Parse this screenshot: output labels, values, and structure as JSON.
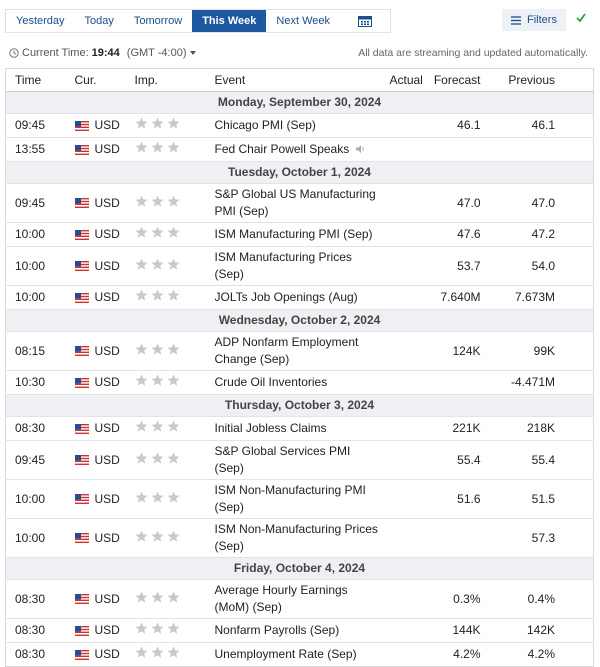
{
  "tabs": [
    "Yesterday",
    "Today",
    "Tomorrow",
    "This Week",
    "Next Week"
  ],
  "active_tab_index": 3,
  "filters": "Filters",
  "current_time_label": "Current Time:",
  "current_time": "19:44",
  "timezone": "(GMT -4:00)",
  "notice": "All data are streaming and updated automatically.",
  "table": {
    "columns": [
      "Time",
      "Cur.",
      "Imp.",
      "Event",
      "Actual",
      "Forecast",
      "Previous"
    ],
    "groups": [
      {
        "date": "Monday, September 30, 2024",
        "rows": [
          {
            "time": "09:45",
            "currency": "USD",
            "event": "Chicago PMI (Sep)",
            "forecast": "46.1",
            "previous": "46.1"
          },
          {
            "time": "13:55",
            "currency": "USD",
            "event": "Fed Chair Powell Speaks"
          }
        ]
      },
      {
        "date": "Tuesday, October 1, 2024",
        "rows": [
          {
            "time": "09:45",
            "currency": "USD",
            "event": "S&P Global US Manufacturing PMI (Sep)",
            "forecast": "47.0",
            "previous": "47.0"
          },
          {
            "time": "10:00",
            "currency": "USD",
            "event": "ISM Manufacturing PMI (Sep)",
            "forecast": "47.6",
            "previous": "47.2"
          },
          {
            "time": "10:00",
            "currency": "USD",
            "event": "ISM Manufacturing Prices (Sep)",
            "forecast": "53.7",
            "previous": "54.0"
          },
          {
            "time": "10:00",
            "currency": "USD",
            "event": "JOLTs Job Openings (Aug)",
            "forecast": "7.640M",
            "previous": "7.673M"
          }
        ]
      },
      {
        "date": "Wednesday, October 2, 2024",
        "rows": [
          {
            "time": "08:15",
            "currency": "USD",
            "event": "ADP Nonfarm Employment Change (Sep)",
            "forecast": "124K",
            "previous": "99K"
          },
          {
            "time": "10:30",
            "currency": "USD",
            "event": "Crude Oil Inventories",
            "previous": "-4.471M"
          }
        ]
      },
      {
        "date": "Thursday, October 3, 2024",
        "rows": [
          {
            "time": "08:30",
            "currency": "USD",
            "event": "Initial Jobless Claims",
            "forecast": "221K",
            "previous": "218K"
          },
          {
            "time": "09:45",
            "currency": "USD",
            "event": "S&P Global Services PMI (Sep)",
            "forecast": "55.4",
            "previous": "55.4"
          },
          {
            "time": "10:00",
            "currency": "USD",
            "event": "ISM Non-Manufacturing PMI (Sep)",
            "forecast": "51.6",
            "previous": "51.5"
          },
          {
            "time": "10:00",
            "currency": "USD",
            "event": "ISM Non-Manufacturing Prices (Sep)",
            "previous": "57.3"
          }
        ]
      },
      {
        "date": "Friday, October 4, 2024",
        "rows": [
          {
            "time": "08:30",
            "currency": "USD",
            "event": "Average Hourly Earnings (MoM) (Sep)",
            "forecast": "0.3%",
            "previous": "0.4%"
          },
          {
            "time": "08:30",
            "currency": "USD",
            "event": "Nonfarm Payrolls (Sep)",
            "forecast": "144K",
            "previous": "142K"
          },
          {
            "time": "08:30",
            "currency": "USD",
            "event": "Unemployment Rate (Sep)",
            "forecast": "4.2%",
            "previous": "4.2%"
          }
        ]
      }
    ]
  }
}
